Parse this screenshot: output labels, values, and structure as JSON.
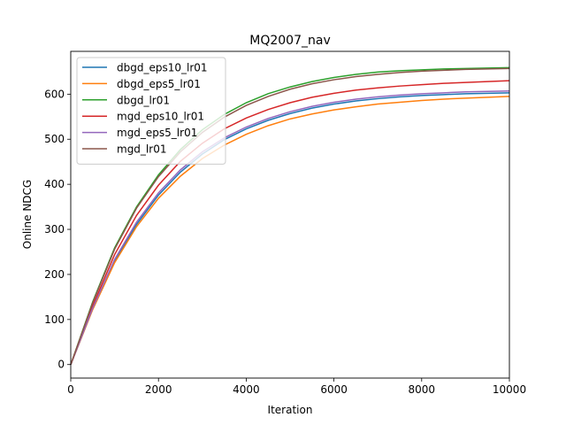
{
  "chart_data": {
    "type": "line",
    "title": "MQ2007_nav",
    "xlabel": "Iteration",
    "ylabel": "Online NDCG",
    "xlim": [
      0,
      10000
    ],
    "ylim": [
      -30,
      695
    ],
    "xticks": [
      0,
      2000,
      4000,
      6000,
      8000,
      10000
    ],
    "yticks": [
      0,
      100,
      200,
      300,
      400,
      500,
      600
    ],
    "grid": false,
    "legend_position": "top-left",
    "x": [
      0,
      500,
      1000,
      1500,
      2000,
      2500,
      3000,
      3500,
      4000,
      4500,
      5000,
      5500,
      6000,
      6500,
      7000,
      7500,
      8000,
      8500,
      9000,
      9500,
      10000
    ],
    "series": [
      {
        "name": "dbgd_eps10_lr01",
        "color": "#1f77b4",
        "values": [
          0,
          124,
          230,
          311,
          376,
          427,
          467,
          499,
          523,
          542,
          557,
          569,
          578,
          585,
          590,
          594,
          597,
          599,
          601,
          602,
          603
        ]
      },
      {
        "name": "dbgd_eps5_lr01",
        "color": "#ff7f0e",
        "values": [
          0,
          122,
          226,
          306,
          369,
          418,
          457,
          487,
          511,
          530,
          545,
          556,
          565,
          572,
          578,
          582,
          586,
          589,
          591,
          593,
          595
        ]
      },
      {
        "name": "dbgd_lr01",
        "color": "#2ca02c",
        "values": [
          0,
          139,
          259,
          350,
          421,
          477,
          521,
          555,
          581,
          601,
          616,
          628,
          637,
          644,
          649,
          652,
          654,
          656,
          657,
          658,
          659
        ]
      },
      {
        "name": "mgd_eps10_lr01",
        "color": "#d62728",
        "values": [
          0,
          130,
          244,
          331,
          398,
          451,
          491,
          523,
          547,
          566,
          581,
          593,
          602,
          609,
          614,
          618,
          621,
          624,
          626,
          628,
          630
        ]
      },
      {
        "name": "mgd_eps5_lr01",
        "color": "#9467bd",
        "values": [
          0,
          125,
          233,
          316,
          381,
          432,
          472,
          503,
          527,
          546,
          561,
          573,
          582,
          589,
          594,
          598,
          601,
          603,
          605,
          606,
          607
        ]
      },
      {
        "name": "mgd_lr01",
        "color": "#8c564b",
        "values": [
          0,
          137,
          256,
          347,
          417,
          472,
          515,
          549,
          575,
          595,
          611,
          623,
          632,
          639,
          644,
          648,
          651,
          653,
          655,
          656,
          657
        ]
      }
    ]
  }
}
